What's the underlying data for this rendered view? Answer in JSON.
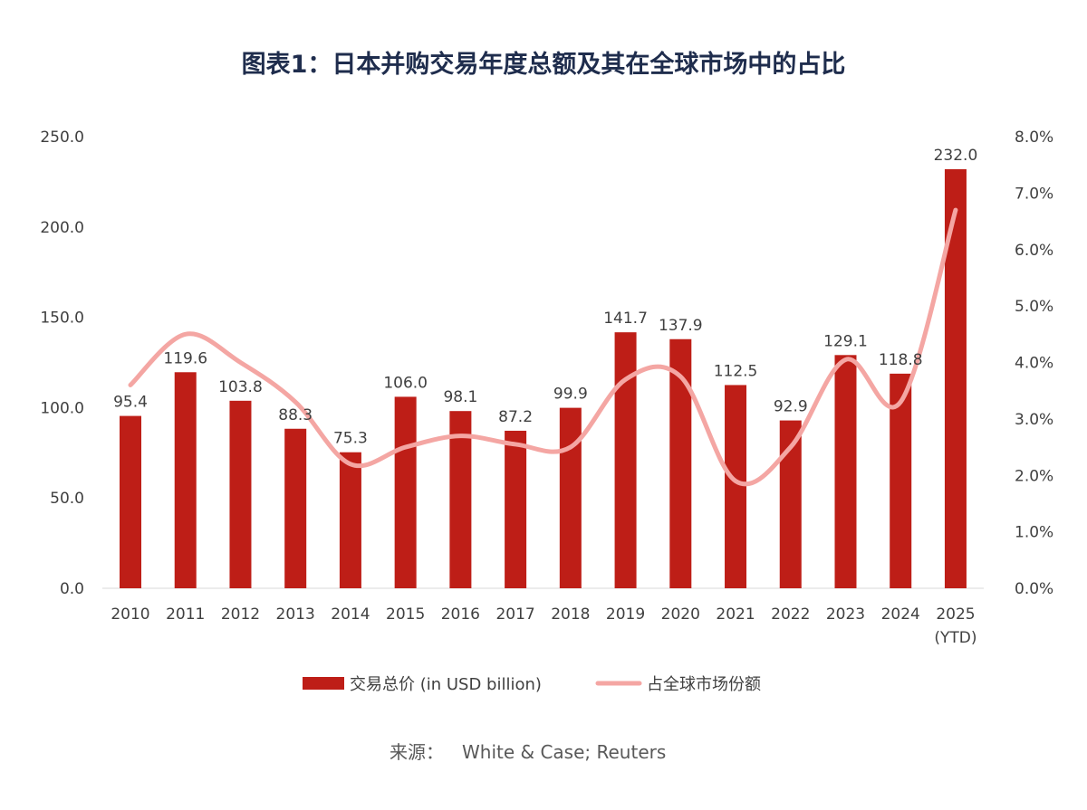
{
  "chart_data": {
    "type": "bar+line",
    "title": "图表1：日本并购交易年度总额及其在全球市场中的占比",
    "categories": [
      "2010",
      "2011",
      "2012",
      "2013",
      "2014",
      "2015",
      "2016",
      "2017",
      "2018",
      "2019",
      "2020",
      "2021",
      "2022",
      "2023",
      "2024",
      "2025"
    ],
    "category_sublabels": {
      "2025": "(YTD)"
    },
    "series": [
      {
        "name": "交易总价 (in USD billion)",
        "type": "bar",
        "axis": "left",
        "color": "#be1e17",
        "values": [
          95.4,
          119.6,
          103.8,
          88.3,
          75.3,
          106.0,
          98.1,
          87.2,
          99.9,
          141.7,
          137.9,
          112.5,
          92.9,
          129.1,
          118.8,
          232.0
        ],
        "labels": [
          "95.4",
          "119.6",
          "103.8",
          "88.3",
          "75.3",
          "106.0",
          "98.1",
          "87.2",
          "99.9",
          "141.7",
          "137.9",
          "112.5",
          "92.9",
          "129.1",
          "118.8",
          "232.0"
        ]
      },
      {
        "name": "占全球市场份额",
        "type": "line",
        "axis": "right",
        "color": "#f4a6a3",
        "smooth": true,
        "values": [
          3.6,
          4.5,
          4.0,
          3.3,
          2.2,
          2.5,
          2.7,
          2.55,
          2.5,
          3.7,
          3.75,
          1.9,
          2.5,
          4.05,
          3.3,
          6.7
        ]
      }
    ],
    "left_axis": {
      "range": [
        0,
        250
      ],
      "ticks": [
        "0.0",
        "50.0",
        "100.0",
        "150.0",
        "200.0",
        "250.0"
      ]
    },
    "right_axis": {
      "range": [
        0,
        8
      ],
      "ticks": [
        "0.0%",
        "1.0%",
        "2.0%",
        "3.0%",
        "4.0%",
        "5.0%",
        "6.0%",
        "7.0%",
        "8.0%"
      ]
    },
    "grid": false,
    "legend_position": "bottom"
  },
  "source": {
    "label": "来源：",
    "text": "White & Case; Reuters"
  }
}
